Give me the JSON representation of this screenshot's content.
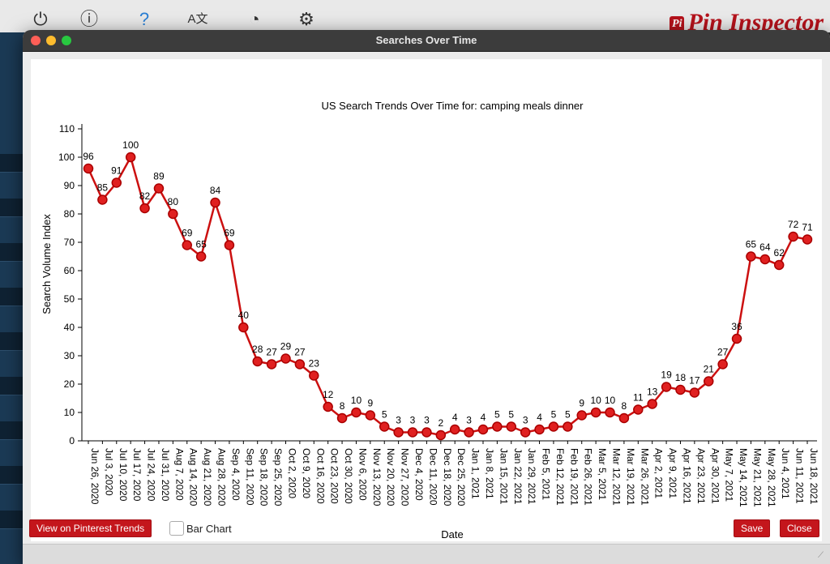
{
  "background_app": {
    "logo_badge": "Pi",
    "logo_text": "Pin Inspector",
    "toolbar_icons": [
      "power-icon",
      "info-icon",
      "help-icon",
      "translate-icon",
      "user-icon",
      "gear-icon"
    ]
  },
  "dialog": {
    "title": "Searches Over Time",
    "buttons": {
      "view_trends": "View on Pinterest Trends",
      "save": "Save",
      "close": "Close"
    },
    "bar_chart_label": "Bar Chart",
    "bar_chart_checked": false
  },
  "colors": {
    "accent": "#c4161c",
    "line": "#cc1010",
    "point_fill": "#e02020"
  },
  "chart_data": {
    "type": "line",
    "title": "US Search Trends Over Time for: camping meals dinner",
    "xlabel": "Date",
    "ylabel": "Search Volume Index",
    "ylim": [
      0,
      110
    ],
    "yticks": [
      0,
      10,
      20,
      30,
      40,
      50,
      60,
      70,
      80,
      90,
      100,
      110
    ],
    "grid": false,
    "x": [
      "Jun 26, 2020",
      "Jul 3, 2020",
      "Jul 10, 2020",
      "Jul 17, 2020",
      "Jul 24, 2020",
      "Jul 31, 2020",
      "Aug 7, 2020",
      "Aug 14, 2020",
      "Aug 21, 2020",
      "Aug 28, 2020",
      "Sep 4, 2020",
      "Sep 11, 2020",
      "Sep 18, 2020",
      "Sep 25, 2020",
      "Oct 2, 2020",
      "Oct 9, 2020",
      "Oct 16, 2020",
      "Oct 23, 2020",
      "Oct 30, 2020",
      "Nov 6, 2020",
      "Nov 13, 2020",
      "Nov 20, 2020",
      "Nov 27, 2020",
      "Dec 4, 2020",
      "Dec 11, 2020",
      "Dec 18, 2020",
      "Dec 25, 2020",
      "Jan 1, 2021",
      "Jan 8, 2021",
      "Jan 15, 2021",
      "Jan 22, 2021",
      "Jan 29, 2021",
      "Feb 5, 2021",
      "Feb 12, 2021",
      "Feb 19, 2021",
      "Feb 26, 2021",
      "Mar 5, 2021",
      "Mar 12, 2021",
      "Mar 19, 2021",
      "Mar 26, 2021",
      "Apr 2, 2021",
      "Apr 9, 2021",
      "Apr 16, 2021",
      "Apr 23, 2021",
      "Apr 30, 2021",
      "May 7, 2021",
      "May 14, 2021",
      "May 21, 2021",
      "May 28, 2021",
      "Jun 4, 2021",
      "Jun 11, 2021",
      "Jun 18, 2021"
    ],
    "series": [
      {
        "values": [
          96,
          85,
          91,
          100,
          82,
          89,
          80,
          69,
          65,
          84,
          69,
          40,
          28,
          27,
          29,
          27,
          23,
          12,
          8,
          10,
          9,
          5,
          3,
          3,
          3,
          2,
          4,
          3,
          4,
          5,
          5,
          3,
          4,
          5,
          5,
          9,
          10,
          10,
          8,
          11,
          13,
          19,
          18,
          17,
          21,
          27,
          36,
          65,
          64,
          62,
          72,
          71
        ]
      }
    ]
  }
}
